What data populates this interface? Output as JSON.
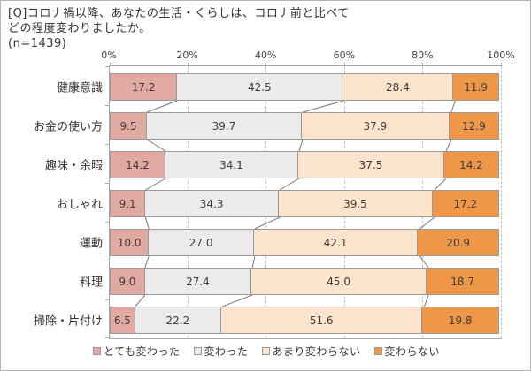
{
  "title": {
    "line1": "[Q]コロナ禍以降、あなたの生活・くらしは、コロナ前と比べて",
    "line2": "どの程度変わりましたか。",
    "line3": "(n=1439)"
  },
  "chart_data": {
    "type": "bar",
    "orientation": "horizontal",
    "stacked": true,
    "unit": "%",
    "categories": [
      "健康意識",
      "お金の使い方",
      "趣味・余暇",
      "おしゃれ",
      "運動",
      "料理",
      "掃除・片付け"
    ],
    "series": [
      {
        "name": "とても変わった",
        "color": "#E2A8A2",
        "values": [
          17.2,
          9.5,
          14.2,
          9.1,
          10.0,
          9.0,
          6.5
        ]
      },
      {
        "name": "変わった",
        "color": "#EBEBEB",
        "values": [
          42.5,
          39.7,
          34.1,
          34.3,
          27.0,
          27.4,
          22.2
        ]
      },
      {
        "name": "あまり変わらない",
        "color": "#FBE3CC",
        "values": [
          28.4,
          37.9,
          37.5,
          39.5,
          42.1,
          45.0,
          51.6
        ]
      },
      {
        "name": "変わらない",
        "color": "#EF9749",
        "values": [
          11.9,
          12.9,
          14.2,
          17.2,
          20.9,
          18.7,
          19.8
        ]
      }
    ],
    "x_ticks": [
      "0%",
      "20%",
      "40%",
      "60%",
      "80%",
      "100%"
    ],
    "xlim": [
      0,
      100
    ],
    "value_labels": "inside, one decimal",
    "grid": true,
    "legend_position": "bottom"
  }
}
